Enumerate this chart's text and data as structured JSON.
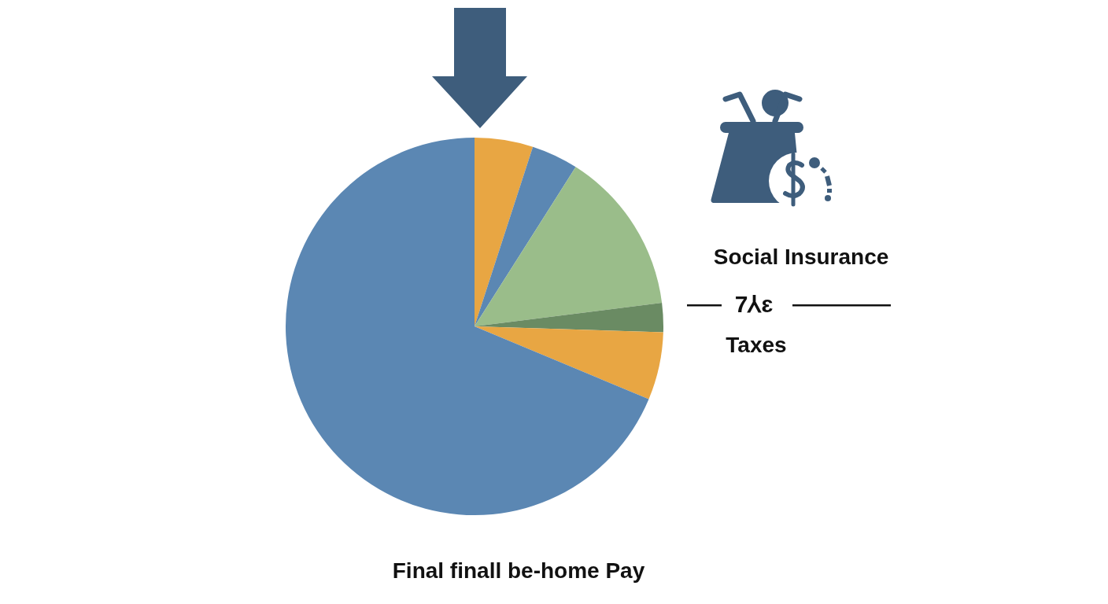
{
  "chart_data": {
    "type": "pie",
    "categories": [
      null,
      null,
      null,
      null,
      null,
      null
    ],
    "values": [
      5.0,
      4.0,
      14.0,
      2.5,
      5.8,
      68.7
    ],
    "colors": [
      "#e8a643",
      "#5b87b3",
      "#9abd8a",
      "#6a8b63",
      "#e8a643",
      "#5b87b3"
    ],
    "annotations": [
      "Social Insurance",
      "7⅄ɛ",
      "Taxes",
      "Final finall be-home Pay"
    ]
  }
}
